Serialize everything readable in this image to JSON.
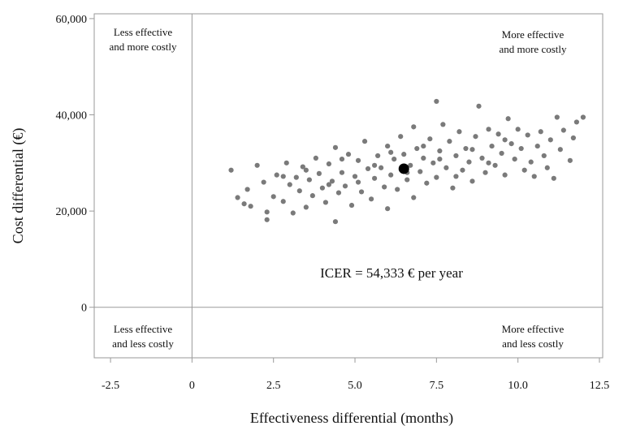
{
  "chart_data": {
    "type": "scatter",
    "title": "",
    "xlabel": "Effectiveness differential  (months)",
    "ylabel": "Cost differential  (€)",
    "xlim": [
      -3.0,
      12.6
    ],
    "ylim": [
      -10500,
      61000
    ],
    "xticks": [
      -2.5,
      0,
      2.5,
      5.0,
      7.5,
      10.0,
      12.5
    ],
    "xtick_labels": [
      "-2.5",
      "0",
      "2.5",
      "5.0",
      "7.5",
      "10.0",
      "12.5"
    ],
    "yticks": [
      0,
      20000,
      40000,
      60000
    ],
    "ytick_labels": [
      "0",
      "20,000",
      "40,000",
      "60,000"
    ],
    "reference_lines": {
      "x": 0,
      "y": 0
    },
    "grid": false,
    "point_color": "#7a7a7a",
    "icer_point_color": "#000000",
    "icer_point": {
      "x": 6.5,
      "y": 28800
    },
    "annotation": "ICER = 54,333 € per year",
    "quadrant_labels": {
      "top_left": [
        "Less effective",
        "and more costly"
      ],
      "top_right": [
        "More effective",
        "and more costly"
      ],
      "bottom_left": [
        "Less effective",
        "and less costly"
      ],
      "bottom_right": [
        "More effective",
        "and less costly"
      ]
    },
    "series": [
      {
        "points": [
          [
            1.2,
            28500
          ],
          [
            1.4,
            22800
          ],
          [
            1.6,
            21500
          ],
          [
            1.7,
            24500
          ],
          [
            1.8,
            21000
          ],
          [
            2.0,
            29500
          ],
          [
            2.2,
            26000
          ],
          [
            2.3,
            19800
          ],
          [
            2.3,
            18200
          ],
          [
            2.5,
            23000
          ],
          [
            2.6,
            27500
          ],
          [
            2.8,
            22000
          ],
          [
            2.9,
            30000
          ],
          [
            3.0,
            25500
          ],
          [
            3.1,
            19600
          ],
          [
            3.2,
            27000
          ],
          [
            3.3,
            24200
          ],
          [
            3.4,
            29200
          ],
          [
            3.5,
            20800
          ],
          [
            3.6,
            26500
          ],
          [
            3.7,
            23200
          ],
          [
            3.8,
            31000
          ],
          [
            3.9,
            27800
          ],
          [
            4.0,
            24800
          ],
          [
            4.1,
            21800
          ],
          [
            4.2,
            29800
          ],
          [
            4.3,
            26200
          ],
          [
            4.4,
            33200
          ],
          [
            4.4,
            17800
          ],
          [
            4.5,
            23800
          ],
          [
            4.6,
            28000
          ],
          [
            4.7,
            25200
          ],
          [
            4.8,
            31800
          ],
          [
            4.9,
            21200
          ],
          [
            5.0,
            27200
          ],
          [
            5.1,
            30500
          ],
          [
            5.2,
            24000
          ],
          [
            5.3,
            34500
          ],
          [
            5.4,
            28800
          ],
          [
            5.5,
            22500
          ],
          [
            5.6,
            26800
          ],
          [
            5.7,
            31500
          ],
          [
            5.8,
            29000
          ],
          [
            5.9,
            25000
          ],
          [
            6.0,
            33500
          ],
          [
            6.0,
            20500
          ],
          [
            6.1,
            27500
          ],
          [
            6.2,
            30800
          ],
          [
            6.3,
            24500
          ],
          [
            6.4,
            35500
          ],
          [
            6.5,
            31800
          ],
          [
            6.6,
            26500
          ],
          [
            6.7,
            29500
          ],
          [
            6.8,
            37500
          ],
          [
            6.8,
            22800
          ],
          [
            6.9,
            33000
          ],
          [
            7.0,
            28200
          ],
          [
            7.1,
            31000
          ],
          [
            7.2,
            25800
          ],
          [
            7.3,
            35000
          ],
          [
            7.4,
            30000
          ],
          [
            7.5,
            42800
          ],
          [
            7.5,
            27000
          ],
          [
            7.6,
            32500
          ],
          [
            7.7,
            38000
          ],
          [
            7.8,
            29000
          ],
          [
            7.9,
            34500
          ],
          [
            8.0,
            24800
          ],
          [
            8.1,
            31500
          ],
          [
            8.2,
            36500
          ],
          [
            8.3,
            28500
          ],
          [
            8.4,
            33000
          ],
          [
            8.5,
            30200
          ],
          [
            8.6,
            26200
          ],
          [
            8.7,
            35500
          ],
          [
            8.8,
            41800
          ],
          [
            8.9,
            31000
          ],
          [
            9.0,
            28000
          ],
          [
            9.1,
            37000
          ],
          [
            9.2,
            33500
          ],
          [
            9.3,
            29500
          ],
          [
            9.4,
            36000
          ],
          [
            9.5,
            32000
          ],
          [
            9.6,
            27500
          ],
          [
            9.7,
            39200
          ],
          [
            9.8,
            34000
          ],
          [
            9.9,
            30800
          ],
          [
            10.0,
            37000
          ],
          [
            10.1,
            33000
          ],
          [
            10.2,
            28500
          ],
          [
            10.3,
            35800
          ],
          [
            10.4,
            30200
          ],
          [
            10.5,
            27200
          ],
          [
            10.6,
            33500
          ],
          [
            10.7,
            36500
          ],
          [
            10.8,
            31500
          ],
          [
            10.9,
            29000
          ],
          [
            11.0,
            34800
          ],
          [
            11.1,
            26800
          ],
          [
            11.2,
            39500
          ],
          [
            11.3,
            32800
          ],
          [
            11.4,
            36800
          ],
          [
            11.6,
            30500
          ],
          [
            11.7,
            35200
          ],
          [
            11.8,
            38500
          ],
          [
            12.0,
            39500
          ],
          [
            2.8,
            27200
          ],
          [
            3.5,
            28500
          ],
          [
            4.2,
            25500
          ],
          [
            4.6,
            30800
          ],
          [
            5.1,
            26000
          ],
          [
            5.6,
            29500
          ],
          [
            6.1,
            32200
          ],
          [
            6.6,
            28000
          ],
          [
            7.1,
            33500
          ],
          [
            7.6,
            30800
          ],
          [
            8.1,
            27200
          ],
          [
            8.6,
            32800
          ],
          [
            9.1,
            30000
          ],
          [
            9.6,
            34800
          ]
        ]
      }
    ]
  }
}
